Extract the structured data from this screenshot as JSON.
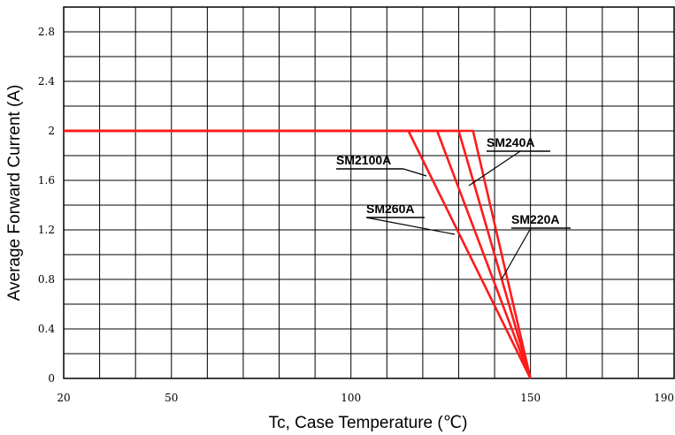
{
  "chart_data": {
    "type": "line",
    "xlabel": "Tc, Case Temperature (℃)",
    "ylabel": "Average Forward Current (A)",
    "xlim": [
      20,
      190
    ],
    "ylim": [
      0,
      3.0
    ],
    "xticks": [
      20,
      50,
      100,
      150,
      190
    ],
    "yticks": [
      0,
      0.4,
      0.8,
      1.2,
      1.6,
      2,
      2.4,
      2.8
    ],
    "ytick_labels": [
      "0",
      "0.4",
      "0.8",
      "1.2",
      "1.6",
      "2",
      "2.4",
      "2.8"
    ],
    "grid": true,
    "series_color": "#ff1a1a",
    "series": [
      {
        "name": "SM2100A",
        "x": [
          20,
          116,
          150
        ],
        "y": [
          2,
          2,
          0
        ]
      },
      {
        "name": "SM260A",
        "x": [
          20,
          124,
          150
        ],
        "y": [
          2,
          2,
          0
        ]
      },
      {
        "name": "SM240A",
        "x": [
          20,
          130,
          150
        ],
        "y": [
          2,
          2,
          0
        ]
      },
      {
        "name": "SM220A",
        "x": [
          20,
          134,
          150
        ],
        "y": [
          2,
          2,
          0
        ]
      }
    ]
  }
}
